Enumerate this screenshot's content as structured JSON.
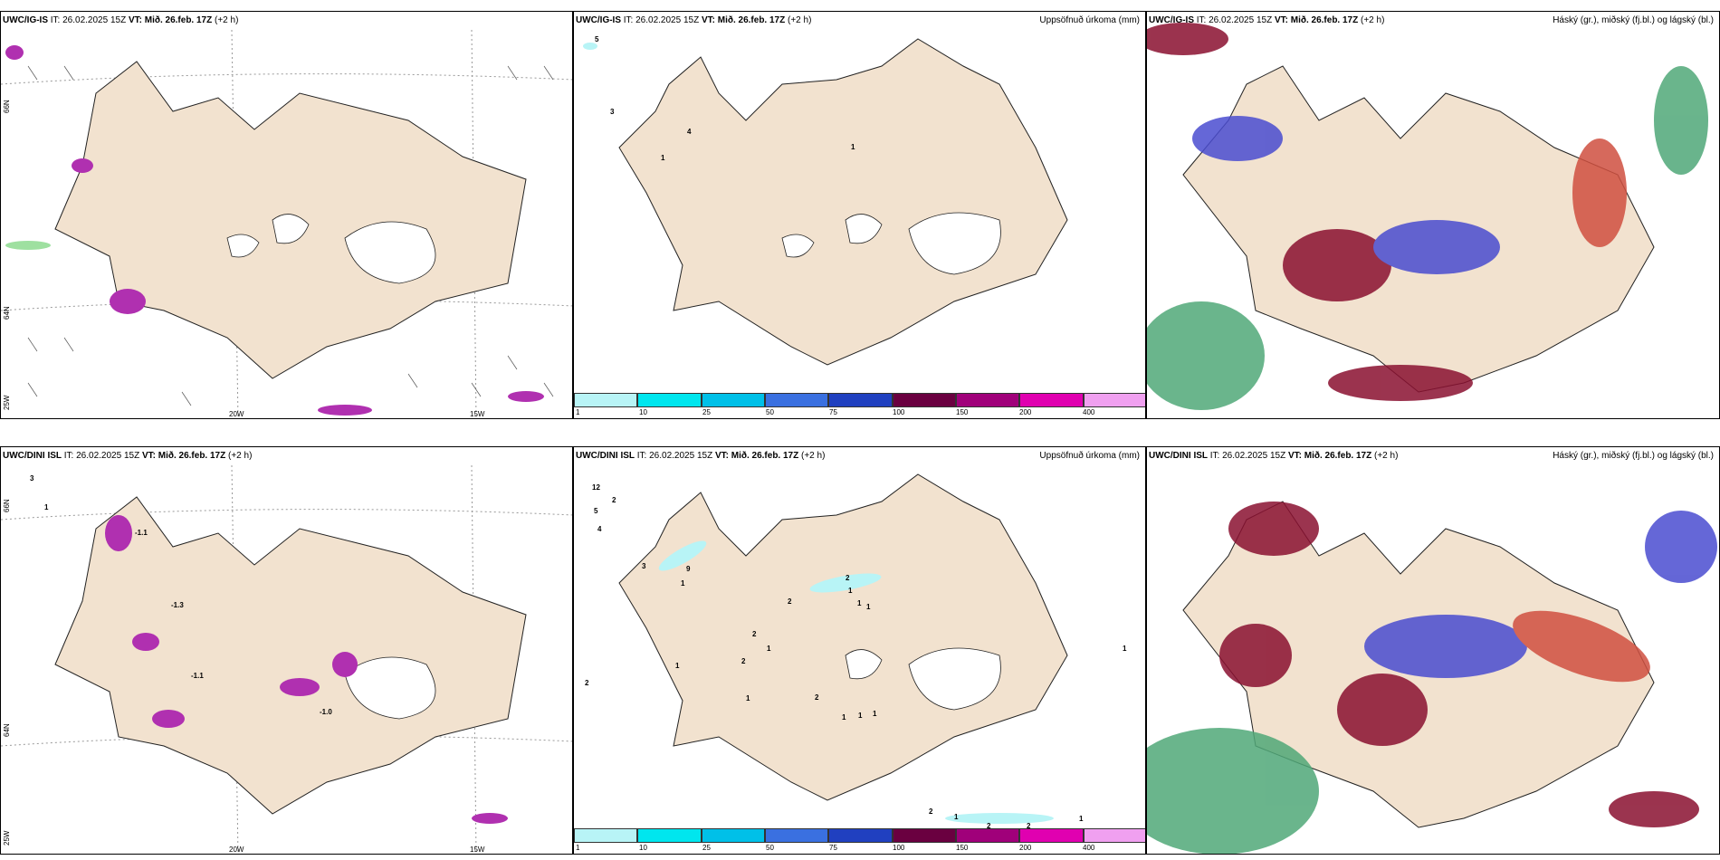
{
  "panels": {
    "top_left": {
      "model": "UWC/IG-IS",
      "it": "IT: 26.02.2025 15Z",
      "vt_label": "VT:",
      "vt": "Mið. 26.feb. 17Z",
      "lead": "(+2 h)",
      "right_title": ""
    },
    "top_mid": {
      "model": "UWC/IG-IS",
      "it": "IT: 26.02.2025 15Z",
      "vt_label": "VT:",
      "vt": "Mið. 26.feb. 17Z",
      "lead": "(+2 h)",
      "right_title": "Uppsöfnuð úrkoma (mm)"
    },
    "top_right": {
      "model": "UWC/IG-IS",
      "it": "IT: 26.02.2025 15Z",
      "vt_label": "VT:",
      "vt": "Mið. 26.feb. 17Z",
      "lead": "(+2 h)",
      "right_title": "Háský (gr.), miðský (fj.bl.) og lágský (bl.)"
    },
    "bot_left": {
      "model": "UWC/DINI ISL",
      "it": "IT: 26.02.2025 15Z",
      "vt_label": "VT:",
      "vt": "Mið. 26.feb. 17Z",
      "lead": "(+2 h)",
      "right_title": ""
    },
    "bot_mid": {
      "model": "UWC/DINI ISL",
      "it": "IT: 26.02.2025 15Z",
      "vt_label": "VT:",
      "vt": "Mið. 26.feb. 17Z",
      "lead": "(+2 h)",
      "right_title": "Uppsöfnuð úrkoma (mm)"
    },
    "bot_right": {
      "model": "UWC/DINI ISL",
      "it": "IT: 26.02.2025 15Z",
      "vt_label": "VT:",
      "vt": "Mið. 26.feb. 17Z",
      "lead": "(+2 h)",
      "right_title": "Háský (gr.), miðský (fj.bl.) og lágský (bl.)"
    }
  },
  "axis_labels": {
    "lon_20w": "20W",
    "lon_15w": "15W",
    "lat_66n": "66N",
    "lat_64n": "64N",
    "lat_25w": "25W"
  },
  "colorbar": {
    "labels": [
      "1",
      "10",
      "25",
      "50",
      "75",
      "100",
      "150",
      "200",
      "400"
    ],
    "colors": [
      "#b8f4f6",
      "#00e6ee",
      "#00c0e8",
      "#3a70e0",
      "#2040c0",
      "#6a0040",
      "#a0007a",
      "#e000b0",
      "#f0a0f0"
    ]
  },
  "top_mid_values": [
    "5",
    "3",
    "4",
    "1",
    "1"
  ],
  "bot_mid_values": [
    "12",
    "2",
    "5",
    "4",
    "3",
    "9",
    "2",
    "1",
    "1",
    "1",
    "2",
    "2",
    "1",
    "2",
    "1",
    "1",
    "2",
    "1",
    "1",
    "1",
    "1",
    "2",
    "1",
    "2",
    "2",
    "1",
    "2",
    "1"
  ],
  "bot_left_values": [
    "3",
    "1",
    "-1.1",
    "-1.3",
    "-1.1",
    "-1.0"
  ],
  "colors": {
    "land": "#f2e2cf",
    "cloud_high": "#50a878",
    "cloud_mid": "#4a4cd0",
    "cloud_low": "#8a1030"
  }
}
